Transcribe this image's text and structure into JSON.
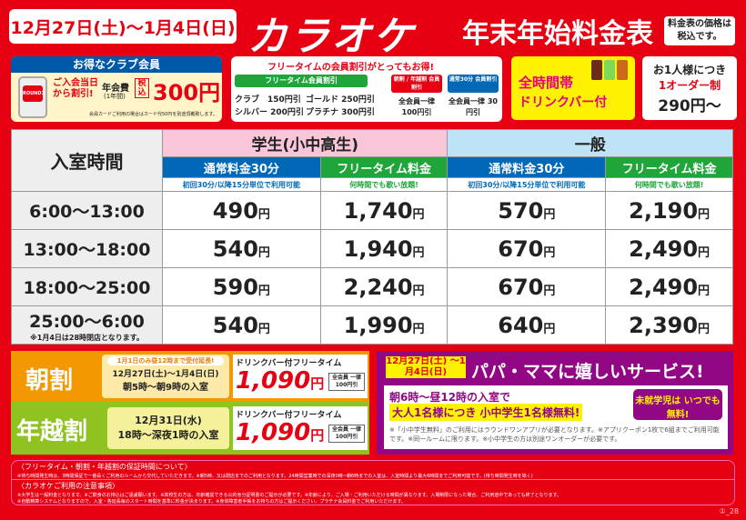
{
  "header": {
    "dates": "12月27日(土)～1月4日(日)",
    "logo": "カラオケ",
    "title": "年末年始料金表",
    "tax_note": "料金表の価格は税込です。"
  },
  "club": {
    "heading": "お得なクラブ会員",
    "app_label": "ROUND1",
    "join_discount": "ご入会当日から割引!",
    "fee_label": "年会費",
    "fee_period": "(1年間)",
    "tax_in": "税込",
    "price": "300円",
    "note": "会員カードご利用の場合はカード代50円を別途頂戴致します。"
  },
  "free_discount": {
    "heading": "フリータイムの会員割引がとってもお得!",
    "tag_free": "フリータイム会員割引",
    "club": "クラブ　150円引",
    "silver": "シルバー 200円引",
    "gold": "ゴールド 250円引",
    "platinum": "プラチナ 300円引",
    "tag_asa": "朝割 / 年越割 会員割引",
    "asa_value": "全会員一律 100円引",
    "tag_normal": "通常30分 会員割引",
    "normal_value": "全会員一律 30円引"
  },
  "drink_bar": {
    "line1": "全時間帯",
    "line2": "ドリンクバー付"
  },
  "order": {
    "line1": "お1人様につき",
    "line2": "1オーダー制",
    "price": "290円～"
  },
  "table": {
    "col_header": "入室時間",
    "student": "学生(小中高生)",
    "general": "一般",
    "sub": [
      "通常料金30分",
      "フリータイム料金",
      "通常料金30分",
      "フリータイム料金"
    ],
    "sub_notes": [
      "初回30分/以降15分単位で利用可能",
      "何時間でも歌い放題!",
      "初回30分/以降15分単位で利用可能",
      "何時間でも歌い放題!"
    ],
    "rows": [
      {
        "time": "6:00～13:00",
        "prices": [
          "490",
          "1,740",
          "570",
          "2,190"
        ]
      },
      {
        "time": "13:00～18:00",
        "prices": [
          "540",
          "1,940",
          "670",
          "2,490"
        ]
      },
      {
        "time": "18:00～25:00",
        "prices": [
          "590",
          "2,240",
          "670",
          "2,490"
        ]
      },
      {
        "time": "25:00～6:00",
        "note": "※1月4日は28時閉店となります。",
        "prices": [
          "540",
          "1,990",
          "640",
          "2,390"
        ]
      }
    ],
    "yen": "円"
  },
  "asa": {
    "label": "朝割",
    "extension": "1月1日のみ昼12時まで受付延長!",
    "dates": "12月27日(土)～1月4日(日)",
    "hours": "朝5時～朝9時の入室",
    "offer": "ドリンクバー付フリータイム",
    "price": "1,090",
    "yen": "円",
    "member": "全会員 一律100円引"
  },
  "toshi": {
    "label": "年越割",
    "date": "12月31日(水)",
    "hours": "18時～深夜1時の入室",
    "offer": "ドリンクバー付フリータイム",
    "price": "1,090",
    "yen": "円",
    "member": "全会員 一律100円引"
  },
  "papa": {
    "dates": "12月27日(土) ～1月4日(日)",
    "title": "パパ・ママに嬉しいサービス!",
    "line1": "朝6時～昼12時の入室で",
    "line2": "大人1名様につき 小中学生1名様無料!",
    "preschool": "未就学児は いつでも無料!",
    "note": "※「小中学生無料」のご利用にはラウンドワンアプリが必要となります。※アプリクーポン1枚で6組までご利用可能です。※同一ルームに限ります。※小中学生の方は別途ワンオーダーが必要です。"
  },
  "notes": {
    "h1": "〈フリータイム・朝割・年越割の保証時間について〉",
    "t1": "※待ち時間発生時は、3時間保証で一番長くご利用のルームから交代していただきます。※朝5時、又は閉店までのご利用となります。24時間営業時での深夜0時~朝6時までの入室は、入室時間より最大6時間までご利用可能です。(待ち時間発生時を除く)",
    "h2": "〈カラオケご利用の注意事項〉",
    "t2": "※大学生は一般料金となります。※ご飲食のお持込はご遠慮願います。※高校生の方は、年齢確認できる公的身分証明書のご提示が必要です。※年齢により、ご入場・ご利用いただける時間が異なります。入場制限になった場合、ご利用途中であっても終了となります。",
    "t3": "※自動精算システムとなりますので、入室・各延長毎のスタート時間を基準に料金が決まります。※身体障害者手帳をお持ちの方はご提示ください。プラチナ会員料金でご利用いただけます。"
  },
  "code": "①_28"
}
